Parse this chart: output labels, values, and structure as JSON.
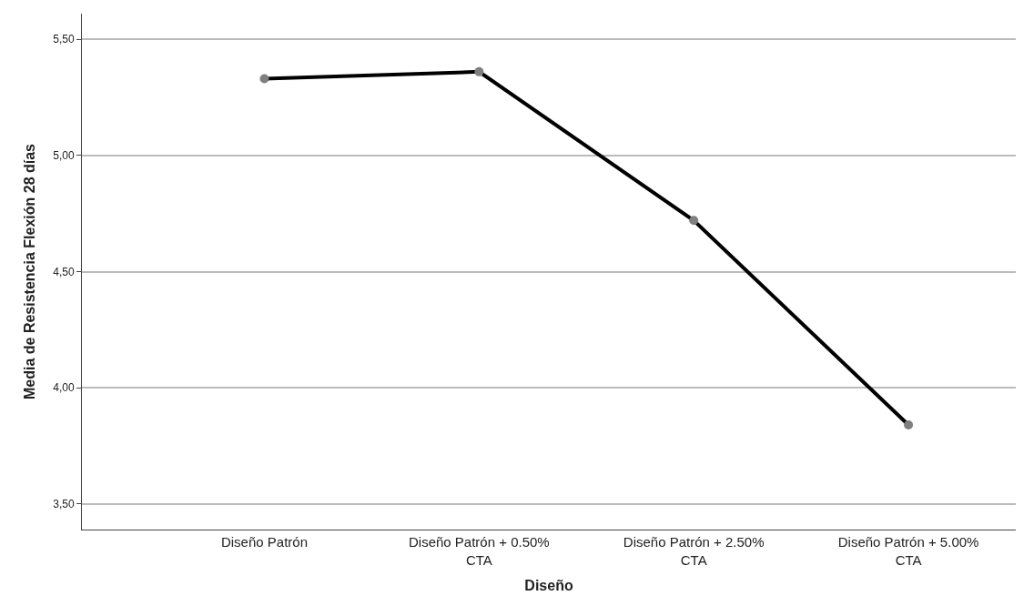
{
  "chart_data": {
    "type": "line",
    "xlabel": "Diseño",
    "ylabel": "Media de Resistencia Flexión 28 días",
    "categories": [
      "Diseño Patrón",
      "Diseño Patrón + 0.50%\nCTA",
      "Diseño Patrón + 2.50%\nCTA",
      "Diseño Patrón + 5.00%\nCTA"
    ],
    "series": [
      {
        "color": "#000000",
        "colors": [
          "#7f7f7f",
          "#7f7f7f",
          "#7f7f7f",
          "#7f7f7f"
        ],
        "values": [
          5.33,
          5.36,
          4.72,
          3.84
        ]
      }
    ],
    "ylim": [
      3.39,
      5.61
    ],
    "yticks": [
      {
        "value": 3.5,
        "label": "3,50"
      },
      {
        "value": 4.0,
        "label": "4,00"
      },
      {
        "value": 4.5,
        "label": "4,50"
      },
      {
        "value": 5.0,
        "label": "5,00"
      },
      {
        "value": 5.5,
        "label": "5,50"
      }
    ],
    "grid": "y",
    "marker": "circle",
    "line_style": "solid"
  }
}
